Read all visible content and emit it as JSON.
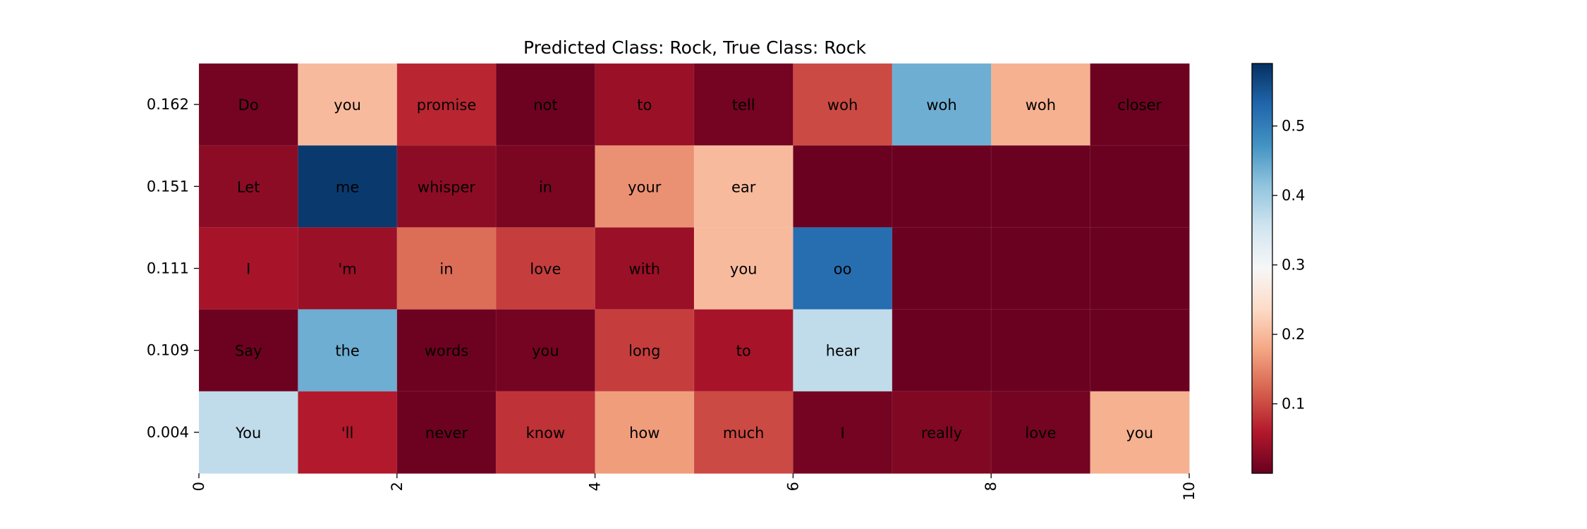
{
  "chart_data": {
    "type": "heatmap",
    "title": "Predicted Class: Rock, True Class: Rock",
    "xlabel": "",
    "ylabel": "",
    "xlim": [
      0,
      10
    ],
    "x_ticks": [
      "0",
      "2",
      "4",
      "6",
      "8",
      "10"
    ],
    "y_tick_labels": [
      "0.162",
      "0.151",
      "0.111",
      "0.109",
      "0.004"
    ],
    "colormap": "RdBu",
    "colorbar_range": [
      0.0,
      0.59
    ],
    "colorbar_ticks": [
      "0.1",
      "0.2",
      "0.3",
      "0.4",
      "0.5"
    ],
    "rows": [
      {
        "words": [
          "Do",
          "you",
          "promise",
          "not",
          "to",
          "tell",
          "woh",
          "woh",
          "woh",
          "closer"
        ],
        "values": [
          0.01,
          0.2,
          0.07,
          0.005,
          0.04,
          0.01,
          0.1,
          0.44,
          0.19,
          0.005
        ]
      },
      {
        "words": [
          "Let",
          "me",
          "whisper",
          "in",
          "your",
          "ear",
          "",
          "",
          "",
          ""
        ],
        "values": [
          0.03,
          0.58,
          0.03,
          0.015,
          0.16,
          0.2,
          0.003,
          0.003,
          0.003,
          0.003
        ]
      },
      {
        "words": [
          "I",
          "'m",
          "in",
          "love",
          "with",
          "you",
          "oo",
          "",
          "",
          ""
        ],
        "values": [
          0.05,
          0.04,
          0.13,
          0.09,
          0.04,
          0.2,
          0.52,
          0.003,
          0.003,
          0.003
        ]
      },
      {
        "words": [
          "Say",
          "the",
          "words",
          "you",
          "long",
          "to",
          "hear",
          "",
          "",
          ""
        ],
        "values": [
          0.005,
          0.44,
          0.005,
          0.01,
          0.09,
          0.05,
          0.37,
          0.003,
          0.003,
          0.003
        ]
      },
      {
        "words": [
          "You",
          "'ll",
          "never",
          "know",
          "how",
          "much",
          "I",
          "really",
          "love",
          "you"
        ],
        "values": [
          0.37,
          0.06,
          0.005,
          0.08,
          0.17,
          0.1,
          0.01,
          0.02,
          0.01,
          0.19
        ]
      }
    ]
  }
}
